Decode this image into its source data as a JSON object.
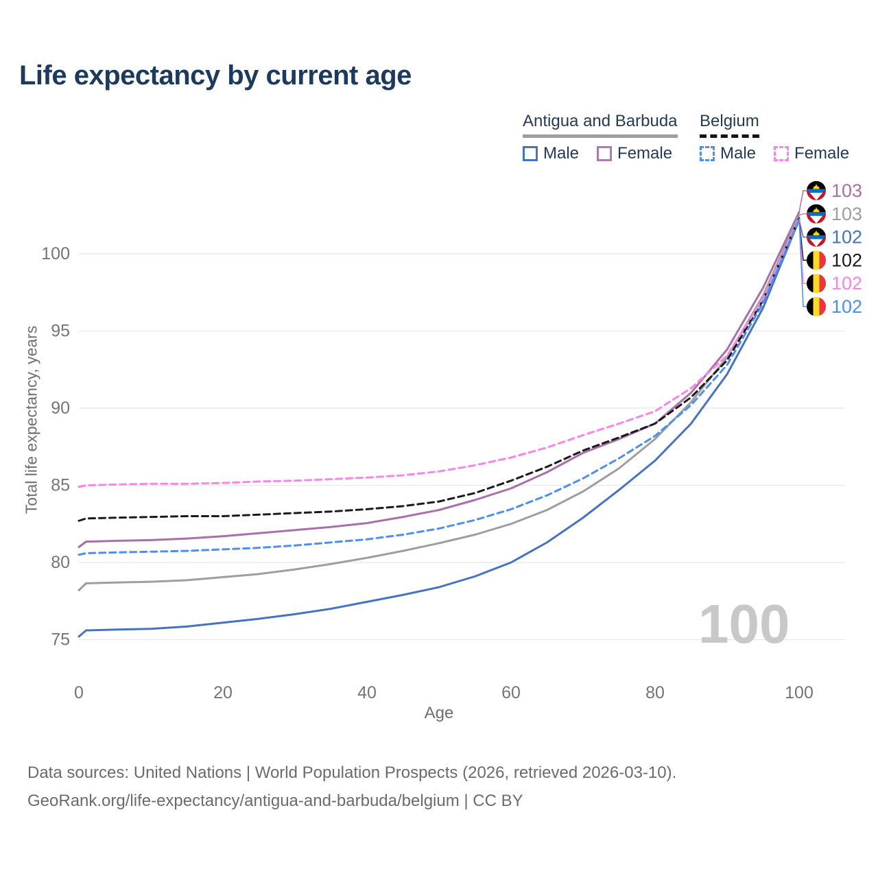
{
  "title": "Life expectancy by current age",
  "legend": {
    "groups": [
      {
        "label": "Antigua and Barbuda",
        "underline": "solid-gray",
        "items": [
          {
            "label": "Male",
            "swatch": "solid-blue"
          },
          {
            "label": "Female",
            "swatch": "solid-purple"
          }
        ]
      },
      {
        "label": "Belgium",
        "underline": "dashed-black",
        "items": [
          {
            "label": "Male",
            "swatch": "dashed-blue"
          },
          {
            "label": "Female",
            "swatch": "dashed-pink"
          }
        ]
      }
    ]
  },
  "watermark_age": "100",
  "footer": {
    "line1": "Data sources: United Nations | World Population Prospects (2026, retrieved 2026-03-10).",
    "line2": "GeoRank.org/life-expectancy/antigua-and-barbuda/belgium | CC BY"
  },
  "colors": {
    "title_navy": "#1b3a5e",
    "tick_gray": "#757575",
    "grid_gray": "#e8e8e8",
    "ab_male_blue": "#4472c4",
    "ab_female_purple": "#a96fa9",
    "ab_total_gray": "#9e9e9e",
    "be_male_blue": "#4b8ff2",
    "be_female_pink": "#fb84ea",
    "be_total_black": "#1a1a1a"
  },
  "chart_data": {
    "type": "line",
    "title": "Life expectancy by current age",
    "xlabel": "Age",
    "ylabel": "Total life expectancy, years",
    "xlim": [
      0,
      100
    ],
    "x_ticks": [
      0,
      20,
      40,
      60,
      80,
      100
    ],
    "y_ticks": [
      75,
      80,
      85,
      90,
      95,
      100
    ],
    "grid": "horizontal-only",
    "legend_position": "top-right",
    "x": [
      0,
      1,
      5,
      10,
      15,
      20,
      25,
      30,
      35,
      40,
      45,
      50,
      55,
      60,
      65,
      70,
      75,
      80,
      85,
      90,
      95,
      100
    ],
    "series": [
      {
        "id": "ab-female",
        "country": "Antigua and Barbuda",
        "sex": "Female",
        "color": "#a96fa9",
        "line_style": "solid",
        "end_label": "103",
        "flag": "ab",
        "label_row": 0,
        "values": [
          81.0,
          81.35,
          81.4,
          81.45,
          81.55,
          81.7,
          81.9,
          82.1,
          82.3,
          82.55,
          82.95,
          83.4,
          84.05,
          84.8,
          85.85,
          87.1,
          88.0,
          89.0,
          91.0,
          93.8,
          97.8,
          102.7
        ]
      },
      {
        "id": "ab-total",
        "country": "Antigua and Barbuda",
        "sex": "Total",
        "color": "#9e9e9e",
        "line_style": "solid",
        "end_label": "103",
        "flag": "ab",
        "label_row": 1,
        "values": [
          78.2,
          78.65,
          78.7,
          78.75,
          78.85,
          79.05,
          79.25,
          79.55,
          79.9,
          80.3,
          80.75,
          81.25,
          81.8,
          82.5,
          83.4,
          84.6,
          86.1,
          88.0,
          90.4,
          93.3,
          97.3,
          102.5
        ]
      },
      {
        "id": "ab-male",
        "country": "Antigua and Barbuda",
        "sex": "Male",
        "color": "#4472c4",
        "line_style": "solid",
        "end_label": "102",
        "flag": "ab",
        "label_row": 2,
        "values": [
          75.2,
          75.6,
          75.65,
          75.7,
          75.85,
          76.1,
          76.35,
          76.65,
          77.0,
          77.45,
          77.9,
          78.4,
          79.1,
          80.0,
          81.3,
          82.9,
          84.7,
          86.6,
          89.0,
          92.2,
          96.5,
          102.2
        ]
      },
      {
        "id": "be-total",
        "country": "Belgium",
        "sex": "Total",
        "color": "#1a1a1a",
        "line_style": "dashed",
        "end_label": "102",
        "flag": "be",
        "label_row": 3,
        "values": [
          82.7,
          82.85,
          82.9,
          82.95,
          83.0,
          83.0,
          83.1,
          83.2,
          83.3,
          83.45,
          83.65,
          83.95,
          84.5,
          85.3,
          86.2,
          87.25,
          88.1,
          89.0,
          90.7,
          93.1,
          97.0,
          102.3
        ]
      },
      {
        "id": "be-female",
        "country": "Belgium",
        "sex": "Female",
        "color": "#fb84ea",
        "line_style": "dashed",
        "end_label": "102",
        "flag": "be",
        "label_row": 4,
        "values": [
          84.9,
          85.0,
          85.05,
          85.1,
          85.1,
          85.15,
          85.25,
          85.3,
          85.4,
          85.5,
          85.65,
          85.9,
          86.3,
          86.8,
          87.45,
          88.25,
          89.0,
          89.8,
          91.3,
          93.4,
          97.1,
          102.3
        ]
      },
      {
        "id": "be-male",
        "country": "Belgium",
        "sex": "Male",
        "color": "#4b8ff2",
        "line_style": "dashed",
        "end_label": "102",
        "flag": "be",
        "label_row": 5,
        "values": [
          80.5,
          80.6,
          80.65,
          80.7,
          80.75,
          80.85,
          80.95,
          81.1,
          81.3,
          81.5,
          81.8,
          82.2,
          82.75,
          83.45,
          84.35,
          85.45,
          86.75,
          88.2,
          90.2,
          92.8,
          96.8,
          102.2
        ]
      }
    ]
  }
}
